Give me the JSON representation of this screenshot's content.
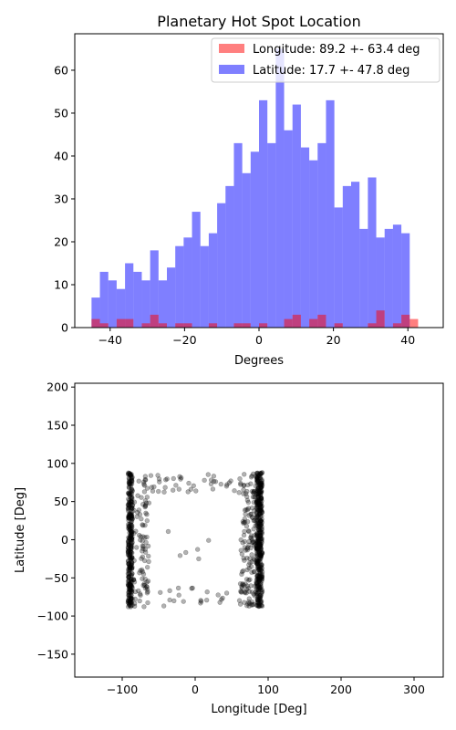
{
  "chart_data": [
    {
      "type": "bar",
      "title": "Planetary Hot Spot Location",
      "xlabel": "Degrees",
      "ylabel": "",
      "xlim": [
        -49.5,
        49.5
      ],
      "ylim": [
        0,
        68.5
      ],
      "xticks": [
        "−40",
        "−20",
        "0",
        "20",
        "40"
      ],
      "xtick_values": [
        -40,
        -20,
        0,
        20,
        40
      ],
      "yticks": [
        "0",
        "10",
        "20",
        "30",
        "40",
        "50",
        "60"
      ],
      "ytick_values": [
        0,
        10,
        20,
        30,
        40,
        50,
        60
      ],
      "grid": false,
      "legend_position": "top-right",
      "bin_edges": [
        -45,
        -42.75,
        -40.5,
        -38.25,
        -36,
        -33.75,
        -31.5,
        -29.25,
        -27,
        -24.75,
        -22.5,
        -20.25,
        -18,
        -15.75,
        -13.5,
        -11.25,
        -9,
        -6.75,
        -4.5,
        -2.25,
        0,
        2.25,
        4.5,
        6.75,
        9,
        11.25,
        13.5,
        15.75,
        18,
        20.25,
        22.5,
        24.75,
        27,
        29.25,
        31.5,
        33.75,
        36,
        38.25,
        40.5,
        42.75,
        45
      ],
      "series": [
        {
          "name": "Longitude: 89.2 +- 63.4 deg",
          "color": "#ff0000",
          "opacity": 0.5,
          "values": [
            2,
            1,
            0,
            2,
            2,
            0,
            1,
            3,
            1,
            0,
            1,
            1,
            0,
            0,
            1,
            0,
            0,
            1,
            1,
            0,
            1,
            0,
            0,
            2,
            3,
            0,
            2,
            3,
            0,
            1,
            0,
            0,
            0,
            1,
            4,
            0,
            1,
            3,
            2,
            0
          ]
        },
        {
          "name": "Latitude: 17.7 +- 47.8 deg",
          "color": "#0000ff",
          "opacity": 0.5,
          "values": [
            7,
            13,
            11,
            9,
            15,
            13,
            11,
            18,
            11,
            14,
            19,
            21,
            27,
            19,
            22,
            29,
            33,
            43,
            36,
            41,
            53,
            43,
            65,
            46,
            52,
            42,
            39,
            43,
            53,
            28,
            33,
            34,
            23,
            35,
            21,
            23,
            24,
            22,
            0,
            0
          ]
        }
      ]
    },
    {
      "type": "scatter",
      "title": "",
      "xlabel": "Longitude [Deg]",
      "ylabel": "Latitude [Deg]",
      "xlim": [
        -165,
        340
      ],
      "ylim": [
        -180,
        205
      ],
      "xticks": [
        "−100",
        "0",
        "100",
        "200",
        "300"
      ],
      "xtick_values": [
        -100,
        0,
        100,
        200,
        300
      ],
      "yticks": [
        "−150",
        "−100",
        "−50",
        "0",
        "50",
        "100",
        "150",
        "200"
      ],
      "ytick_values": [
        -150,
        -100,
        -50,
        0,
        50,
        100,
        150,
        200
      ],
      "grid": false,
      "marker_color": "#000000",
      "marker_opacity": 0.3,
      "points": {
        "seed": 7,
        "clusters": [
          {
            "x_range": [
              -92,
              -86
            ],
            "y_range": [
              -88,
              88
            ],
            "count": 320
          },
          {
            "x_range": [
              84,
              92
            ],
            "y_range": [
              -88,
              88
            ],
            "count": 420
          },
          {
            "x_range": [
              62,
              84
            ],
            "y_range": [
              -88,
              88
            ],
            "count": 140
          },
          {
            "x_range": [
              -86,
              -62
            ],
            "y_range": [
              -88,
              88
            ],
            "count": 90
          },
          {
            "x_range": [
              -62,
              62
            ],
            "y_range": [
              60,
              88
            ],
            "count": 40
          },
          {
            "x_range": [
              -62,
              62
            ],
            "y_range": [
              -88,
              -55
            ],
            "count": 22
          },
          {
            "x_range": [
              -40,
              40
            ],
            "y_range": [
              -30,
              30
            ],
            "count": 6
          }
        ]
      }
    }
  ]
}
